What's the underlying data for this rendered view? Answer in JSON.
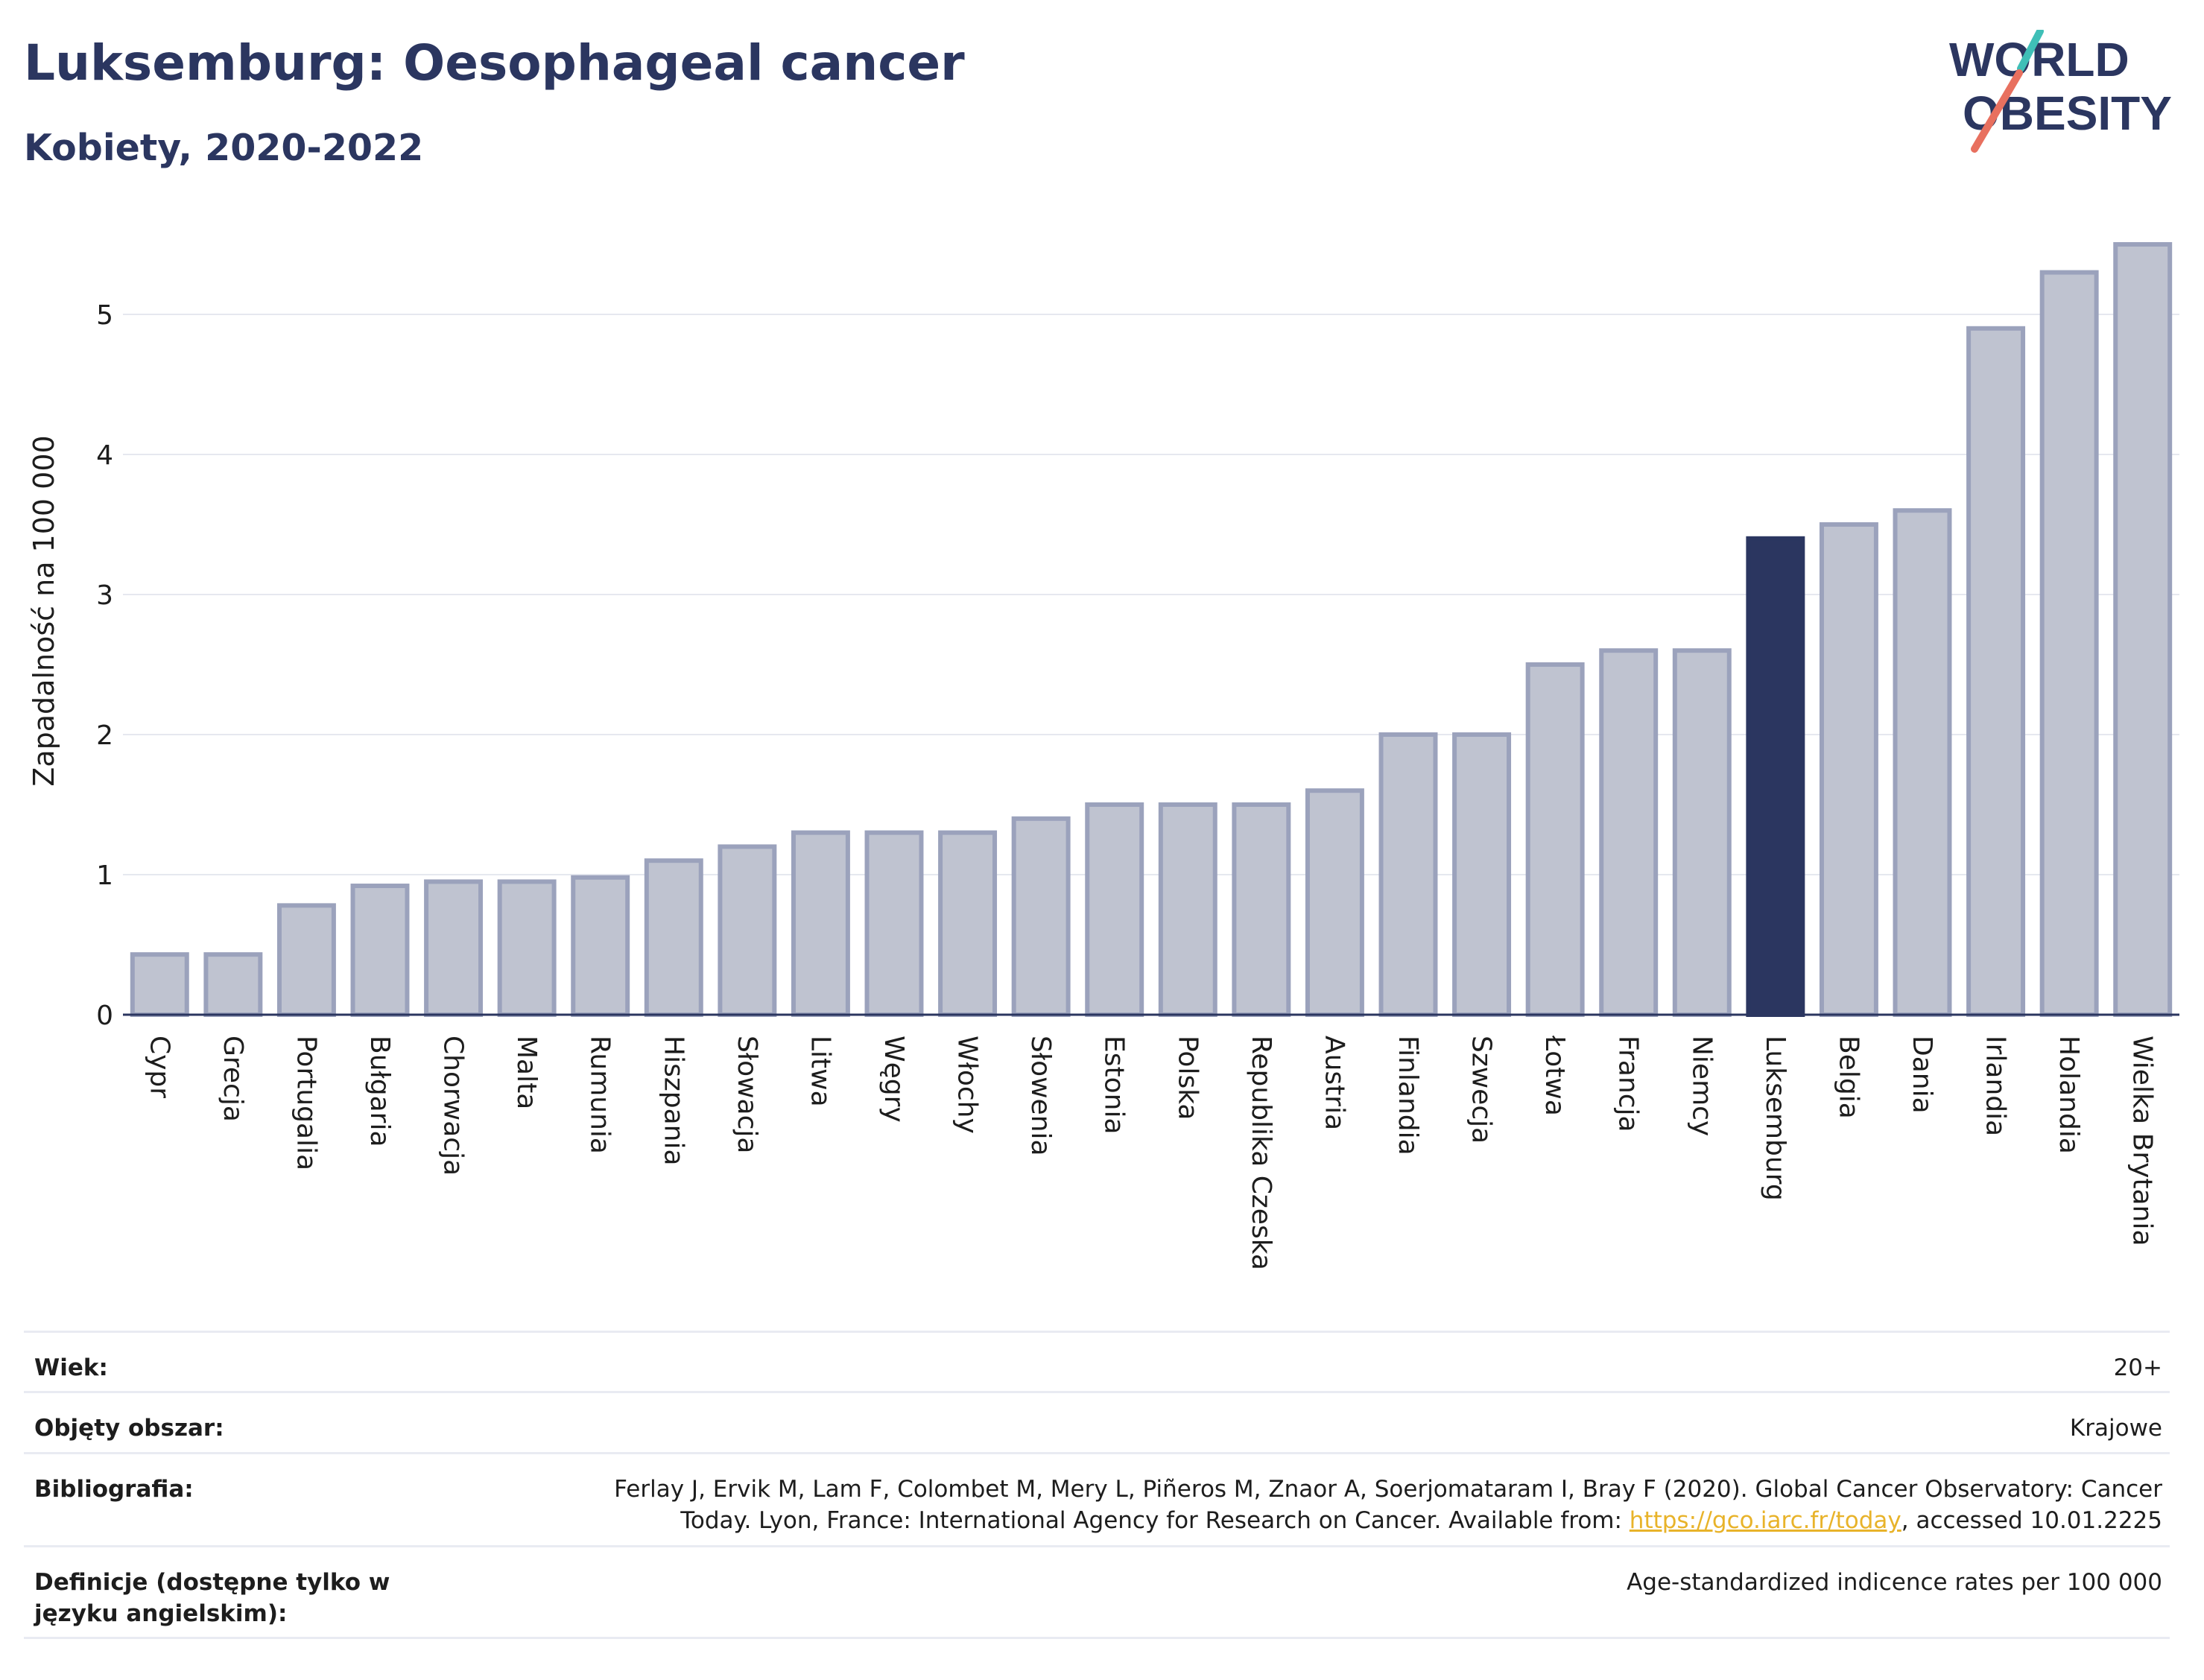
{
  "header": {
    "title": "Luksemburg: Oesophageal cancer",
    "subtitle": "Kobiety, 2020-2022"
  },
  "logo": {
    "line1": "WORLD",
    "line2": "OBESITY",
    "colors": {
      "text": "#2b3660",
      "teal": "#3fbfb7",
      "coral": "#e8705f"
    }
  },
  "chart_data": {
    "type": "bar",
    "title": "",
    "xlabel": "",
    "ylabel": "Zapadalność na 100 000",
    "ylim": [
      0,
      5.6
    ],
    "yticks": [
      0,
      1,
      2,
      3,
      4,
      5
    ],
    "grid": true,
    "highlight": "Luksemburg",
    "colors": {
      "bar": "#bfc3d0",
      "bar_edge": "#9ba2bc",
      "highlight": "#2b3660",
      "grid": "#e6e8ef",
      "axis": "#2b3660"
    },
    "categories": [
      "Cypr",
      "Grecja",
      "Portugalia",
      "Bułgaria",
      "Chorwacja",
      "Malta",
      "Rumunia",
      "Hiszpania",
      "Słowacja",
      "Litwa",
      "Węgry",
      "Włochy",
      "Słowenia",
      "Estonia",
      "Polska",
      "Republika Czeska",
      "Austria",
      "Finlandia",
      "Szwecja",
      "Łotwa",
      "Francja",
      "Niemcy",
      "Luksemburg",
      "Belgia",
      "Dania",
      "Irlandia",
      "Holandia",
      "Wielka Brytania"
    ],
    "values": [
      0.43,
      0.43,
      0.78,
      0.92,
      0.95,
      0.95,
      0.98,
      1.1,
      1.2,
      1.3,
      1.3,
      1.3,
      1.4,
      1.5,
      1.5,
      1.5,
      1.6,
      2.0,
      2.0,
      2.5,
      2.6,
      2.6,
      3.4,
      3.5,
      3.6,
      4.9,
      5.3,
      5.5
    ]
  },
  "meta": {
    "age_label": "Wiek:",
    "age_value": "20+",
    "coverage_label": "Objęty obszar:",
    "coverage_value": "Krajowe",
    "bibliography_label": "Bibliografia:",
    "bibliography_line1": "Ferlay J, Ervik M, Lam F, Colombet M, Mery L, Piñeros M, Znaor A, Soerjomataram I, Bray F (2020). Global Cancer Observatory: Cancer",
    "bibliography_line2_pre": "Today. Lyon, France: International Agency for Research on Cancer. Available from: ",
    "bibliography_link": "https://gco.iarc.fr/today",
    "bibliography_line2_post": ", accessed 10.01.2225",
    "definitions_label": "Definicje (dostępne tylko w języku angielskim):",
    "definitions_value": "Age-standardized indicence rates per 100 000"
  }
}
